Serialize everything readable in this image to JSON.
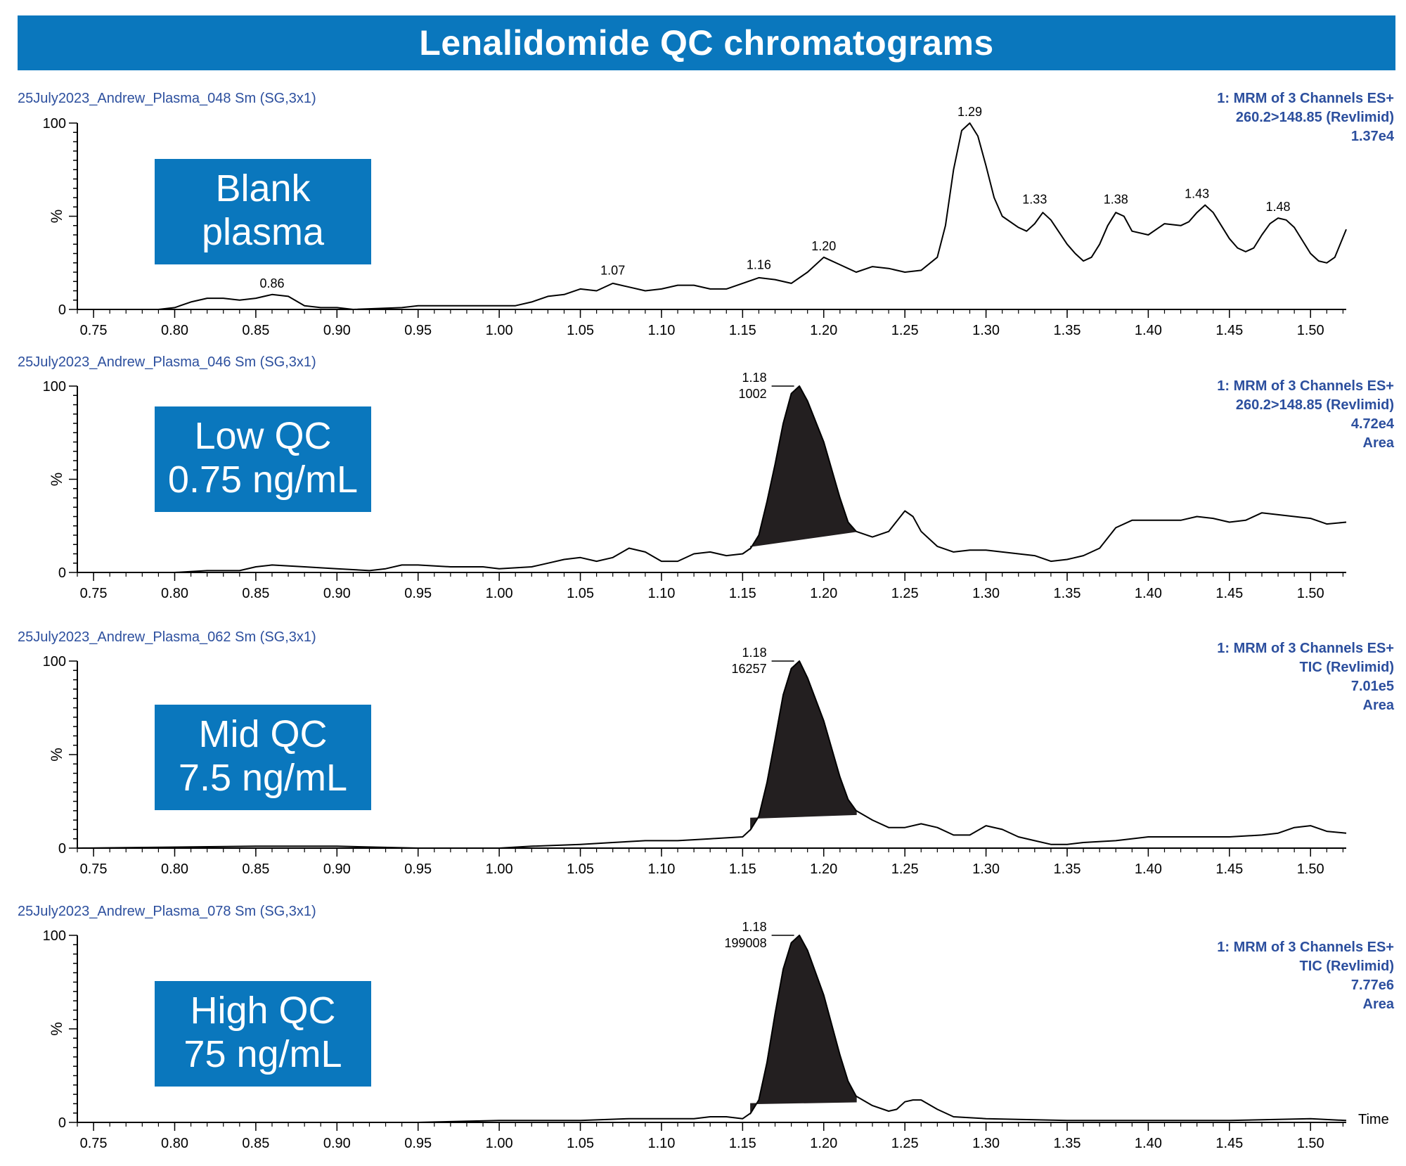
{
  "title": "Lenalidomide QC chromatograms",
  "colors": {
    "title_bg": "#0a77bd",
    "label_box": "#0a77bd",
    "info_text": "#2c4f9e",
    "trace": "#000000",
    "peak_fill": "#231f20"
  },
  "chart_data": [
    {
      "type": "line",
      "sample": "25July2023_Andrew_Plasma_048 Sm (SG,3x1)",
      "label_lines": [
        "Blank",
        "plasma"
      ],
      "info_lines": [
        "1: MRM of 3 Channels ES+",
        "260.2>148.85 (Revlimid)",
        "1.37e4"
      ],
      "ylabel": "%",
      "xlabel": "",
      "ylim": [
        0,
        100
      ],
      "y_ticks": [
        "0",
        "100"
      ],
      "xlim": [
        0.74,
        1.522
      ],
      "x_ticks": [
        "0.75",
        "0.80",
        "0.85",
        "0.90",
        "0.95",
        "1.00",
        "1.05",
        "1.10",
        "1.15",
        "1.20",
        "1.25",
        "1.30",
        "1.35",
        "1.40",
        "1.45",
        "1.50"
      ],
      "peak_labels": [
        {
          "x": 0.86,
          "y": 8,
          "text": "0.86"
        },
        {
          "x": 1.07,
          "y": 15,
          "text": "1.07"
        },
        {
          "x": 1.16,
          "y": 18,
          "text": "1.16"
        },
        {
          "x": 1.2,
          "y": 28,
          "text": "1.20"
        },
        {
          "x": 1.29,
          "y": 100,
          "text": "1.29"
        },
        {
          "x": 1.33,
          "y": 53,
          "text": "1.33"
        },
        {
          "x": 1.38,
          "y": 53,
          "text": "1.38"
        },
        {
          "x": 1.43,
          "y": 56,
          "text": "1.43"
        },
        {
          "x": 1.48,
          "y": 49,
          "text": "1.48"
        }
      ],
      "points": [
        [
          0.74,
          0
        ],
        [
          0.79,
          0
        ],
        [
          0.8,
          1
        ],
        [
          0.81,
          4
        ],
        [
          0.82,
          6
        ],
        [
          0.83,
          6
        ],
        [
          0.84,
          5
        ],
        [
          0.85,
          6
        ],
        [
          0.86,
          8
        ],
        [
          0.87,
          7
        ],
        [
          0.88,
          2
        ],
        [
          0.89,
          1
        ],
        [
          0.9,
          1
        ],
        [
          0.91,
          0
        ],
        [
          0.94,
          1
        ],
        [
          0.95,
          2
        ],
        [
          0.96,
          2
        ],
        [
          0.98,
          2
        ],
        [
          1.0,
          2
        ],
        [
          1.01,
          2
        ],
        [
          1.02,
          4
        ],
        [
          1.03,
          7
        ],
        [
          1.04,
          8
        ],
        [
          1.05,
          11
        ],
        [
          1.06,
          10
        ],
        [
          1.07,
          14
        ],
        [
          1.08,
          12
        ],
        [
          1.09,
          10
        ],
        [
          1.1,
          11
        ],
        [
          1.11,
          13
        ],
        [
          1.12,
          13
        ],
        [
          1.13,
          11
        ],
        [
          1.14,
          11
        ],
        [
          1.15,
          14
        ],
        [
          1.16,
          17
        ],
        [
          1.17,
          16
        ],
        [
          1.18,
          14
        ],
        [
          1.19,
          20
        ],
        [
          1.2,
          28
        ],
        [
          1.21,
          24
        ],
        [
          1.22,
          20
        ],
        [
          1.23,
          23
        ],
        [
          1.24,
          22
        ],
        [
          1.25,
          20
        ],
        [
          1.26,
          21
        ],
        [
          1.27,
          28
        ],
        [
          1.275,
          45
        ],
        [
          1.28,
          75
        ],
        [
          1.285,
          96
        ],
        [
          1.29,
          100
        ],
        [
          1.295,
          93
        ],
        [
          1.3,
          77
        ],
        [
          1.305,
          60
        ],
        [
          1.31,
          50
        ],
        [
          1.32,
          44
        ],
        [
          1.325,
          42
        ],
        [
          1.33,
          46
        ],
        [
          1.335,
          52
        ],
        [
          1.34,
          48
        ],
        [
          1.35,
          35
        ],
        [
          1.355,
          30
        ],
        [
          1.36,
          26
        ],
        [
          1.365,
          28
        ],
        [
          1.37,
          35
        ],
        [
          1.375,
          45
        ],
        [
          1.38,
          52
        ],
        [
          1.385,
          50
        ],
        [
          1.39,
          42
        ],
        [
          1.4,
          40
        ],
        [
          1.41,
          46
        ],
        [
          1.42,
          45
        ],
        [
          1.425,
          47
        ],
        [
          1.43,
          52
        ],
        [
          1.435,
          56
        ],
        [
          1.44,
          52
        ],
        [
          1.45,
          38
        ],
        [
          1.455,
          33
        ],
        [
          1.46,
          31
        ],
        [
          1.465,
          33
        ],
        [
          1.47,
          40
        ],
        [
          1.475,
          46
        ],
        [
          1.48,
          49
        ],
        [
          1.485,
          48
        ],
        [
          1.49,
          44
        ],
        [
          1.5,
          30
        ],
        [
          1.505,
          26
        ],
        [
          1.51,
          25
        ],
        [
          1.515,
          28
        ],
        [
          1.522,
          43
        ]
      ],
      "fill_peak": null
    },
    {
      "type": "line",
      "sample": "25July2023_Andrew_Plasma_046 Sm (SG,3x1)",
      "label_lines": [
        "Low QC",
        "0.75 ng/mL"
      ],
      "info_lines": [
        "1: MRM of 3 Channels ES+",
        "260.2>148.85 (Revlimid)",
        "4.72e4",
        "Area"
      ],
      "ylabel": "%",
      "xlabel": "",
      "ylim": [
        0,
        100
      ],
      "y_ticks": [
        "0",
        "100"
      ],
      "xlim": [
        0.74,
        1.522
      ],
      "x_ticks": [
        "0.75",
        "0.80",
        "0.85",
        "0.90",
        "0.95",
        "1.00",
        "1.05",
        "1.10",
        "1.15",
        "1.20",
        "1.25",
        "1.30",
        "1.35",
        "1.40",
        "1.45",
        "1.50"
      ],
      "peak_labels": [
        {
          "x": 1.18,
          "y": 100,
          "text": "1.18",
          "area": "1002"
        }
      ],
      "points": [
        [
          0.74,
          0
        ],
        [
          0.8,
          0
        ],
        [
          0.82,
          1
        ],
        [
          0.84,
          1
        ],
        [
          0.85,
          3
        ],
        [
          0.86,
          4
        ],
        [
          0.88,
          3
        ],
        [
          0.9,
          2
        ],
        [
          0.92,
          1
        ],
        [
          0.93,
          2
        ],
        [
          0.94,
          4
        ],
        [
          0.95,
          4
        ],
        [
          0.97,
          3
        ],
        [
          0.99,
          3
        ],
        [
          1.0,
          2
        ],
        [
          1.02,
          3
        ],
        [
          1.03,
          5
        ],
        [
          1.04,
          7
        ],
        [
          1.05,
          8
        ],
        [
          1.06,
          6
        ],
        [
          1.07,
          8
        ],
        [
          1.08,
          13
        ],
        [
          1.09,
          11
        ],
        [
          1.1,
          6
        ],
        [
          1.11,
          6
        ],
        [
          1.12,
          10
        ],
        [
          1.13,
          11
        ],
        [
          1.14,
          9
        ],
        [
          1.15,
          10
        ],
        [
          1.155,
          13
        ],
        [
          1.16,
          20
        ],
        [
          1.165,
          38
        ],
        [
          1.17,
          58
        ],
        [
          1.175,
          80
        ],
        [
          1.18,
          96
        ],
        [
          1.185,
          100
        ],
        [
          1.19,
          92
        ],
        [
          1.2,
          70
        ],
        [
          1.21,
          40
        ],
        [
          1.215,
          27
        ],
        [
          1.22,
          22
        ],
        [
          1.23,
          19
        ],
        [
          1.24,
          22
        ],
        [
          1.25,
          33
        ],
        [
          1.255,
          30
        ],
        [
          1.26,
          22
        ],
        [
          1.27,
          14
        ],
        [
          1.28,
          11
        ],
        [
          1.29,
          12
        ],
        [
          1.3,
          12
        ],
        [
          1.31,
          11
        ],
        [
          1.32,
          10
        ],
        [
          1.33,
          9
        ],
        [
          1.34,
          6
        ],
        [
          1.35,
          7
        ],
        [
          1.36,
          9
        ],
        [
          1.37,
          13
        ],
        [
          1.38,
          24
        ],
        [
          1.39,
          28
        ],
        [
          1.4,
          28
        ],
        [
          1.42,
          28
        ],
        [
          1.43,
          30
        ],
        [
          1.44,
          29
        ],
        [
          1.45,
          27
        ],
        [
          1.46,
          28
        ],
        [
          1.47,
          32
        ],
        [
          1.48,
          31
        ],
        [
          1.49,
          30
        ],
        [
          1.5,
          29
        ],
        [
          1.51,
          26
        ],
        [
          1.522,
          27
        ]
      ],
      "fill_peak": {
        "x0": 1.155,
        "x1": 1.22,
        "y0": 14,
        "y1": 22
      }
    },
    {
      "type": "line",
      "sample": "25July2023_Andrew_Plasma_062 Sm (SG,3x1)",
      "label_lines": [
        "Mid QC",
        "7.5 ng/mL"
      ],
      "info_lines": [
        "1: MRM of 3 Channels ES+",
        "TIC (Revlimid)",
        "7.01e5",
        "Area"
      ],
      "ylabel": "%",
      "xlabel": "",
      "ylim": [
        0,
        100
      ],
      "y_ticks": [
        "0",
        "100"
      ],
      "xlim": [
        0.74,
        1.522
      ],
      "x_ticks": [
        "0.75",
        "0.80",
        "0.85",
        "0.90",
        "0.95",
        "1.00",
        "1.05",
        "1.10",
        "1.15",
        "1.20",
        "1.25",
        "1.30",
        "1.35",
        "1.40",
        "1.45",
        "1.50"
      ],
      "peak_labels": [
        {
          "x": 1.18,
          "y": 100,
          "text": "1.18",
          "area": "16257"
        }
      ],
      "points": [
        [
          0.74,
          0
        ],
        [
          0.85,
          1
        ],
        [
          0.9,
          1
        ],
        [
          0.95,
          0
        ],
        [
          1.0,
          0
        ],
        [
          1.02,
          1
        ],
        [
          1.05,
          2
        ],
        [
          1.07,
          3
        ],
        [
          1.09,
          4
        ],
        [
          1.11,
          4
        ],
        [
          1.13,
          5
        ],
        [
          1.15,
          6
        ],
        [
          1.155,
          10
        ],
        [
          1.16,
          17
        ],
        [
          1.165,
          35
        ],
        [
          1.17,
          58
        ],
        [
          1.175,
          82
        ],
        [
          1.18,
          96
        ],
        [
          1.185,
          100
        ],
        [
          1.19,
          91
        ],
        [
          1.2,
          68
        ],
        [
          1.21,
          38
        ],
        [
          1.215,
          26
        ],
        [
          1.22,
          20
        ],
        [
          1.23,
          15
        ],
        [
          1.24,
          11
        ],
        [
          1.25,
          11
        ],
        [
          1.26,
          13
        ],
        [
          1.27,
          11
        ],
        [
          1.28,
          7
        ],
        [
          1.29,
          7
        ],
        [
          1.3,
          12
        ],
        [
          1.31,
          10
        ],
        [
          1.32,
          6
        ],
        [
          1.33,
          4
        ],
        [
          1.34,
          2
        ],
        [
          1.35,
          2
        ],
        [
          1.36,
          3
        ],
        [
          1.38,
          4
        ],
        [
          1.4,
          6
        ],
        [
          1.42,
          6
        ],
        [
          1.45,
          6
        ],
        [
          1.47,
          7
        ],
        [
          1.48,
          8
        ],
        [
          1.49,
          11
        ],
        [
          1.5,
          12
        ],
        [
          1.51,
          9
        ],
        [
          1.522,
          8
        ]
      ],
      "fill_peak": {
        "x0": 1.155,
        "x1": 1.22,
        "y0": 16,
        "y1": 18
      }
    },
    {
      "type": "line",
      "sample": "25July2023_Andrew_Plasma_078 Sm (SG,3x1)",
      "label_lines": [
        "High QC",
        "75 ng/mL"
      ],
      "info_lines": [
        "1: MRM of 3 Channels ES+",
        "TIC (Revlimid)",
        "7.77e6",
        "Area"
      ],
      "ylabel": "%",
      "xlabel": "Time",
      "ylim": [
        0,
        100
      ],
      "y_ticks": [
        "0",
        "100"
      ],
      "xlim": [
        0.74,
        1.522
      ],
      "x_ticks": [
        "0.75",
        "0.80",
        "0.85",
        "0.90",
        "0.95",
        "1.00",
        "1.05",
        "1.10",
        "1.15",
        "1.20",
        "1.25",
        "1.30",
        "1.35",
        "1.40",
        "1.45",
        "1.50"
      ],
      "peak_labels": [
        {
          "x": 1.18,
          "y": 100,
          "text": "1.18",
          "area": "199008"
        }
      ],
      "points": [
        [
          0.74,
          0
        ],
        [
          0.95,
          0
        ],
        [
          1.0,
          1
        ],
        [
          1.05,
          1
        ],
        [
          1.08,
          2
        ],
        [
          1.1,
          2
        ],
        [
          1.12,
          2
        ],
        [
          1.13,
          3
        ],
        [
          1.14,
          3
        ],
        [
          1.15,
          2
        ],
        [
          1.155,
          5
        ],
        [
          1.16,
          12
        ],
        [
          1.165,
          32
        ],
        [
          1.17,
          58
        ],
        [
          1.175,
          82
        ],
        [
          1.18,
          96
        ],
        [
          1.185,
          100
        ],
        [
          1.19,
          92
        ],
        [
          1.2,
          68
        ],
        [
          1.21,
          36
        ],
        [
          1.215,
          22
        ],
        [
          1.22,
          14
        ],
        [
          1.23,
          9
        ],
        [
          1.24,
          6
        ],
        [
          1.245,
          7
        ],
        [
          1.25,
          11
        ],
        [
          1.255,
          12
        ],
        [
          1.26,
          12
        ],
        [
          1.27,
          7
        ],
        [
          1.28,
          3
        ],
        [
          1.3,
          2
        ],
        [
          1.35,
          1
        ],
        [
          1.4,
          1
        ],
        [
          1.45,
          1
        ],
        [
          1.5,
          2
        ],
        [
          1.522,
          1
        ]
      ],
      "fill_peak": {
        "x0": 1.155,
        "x1": 1.22,
        "y0": 10,
        "y1": 11
      }
    }
  ]
}
